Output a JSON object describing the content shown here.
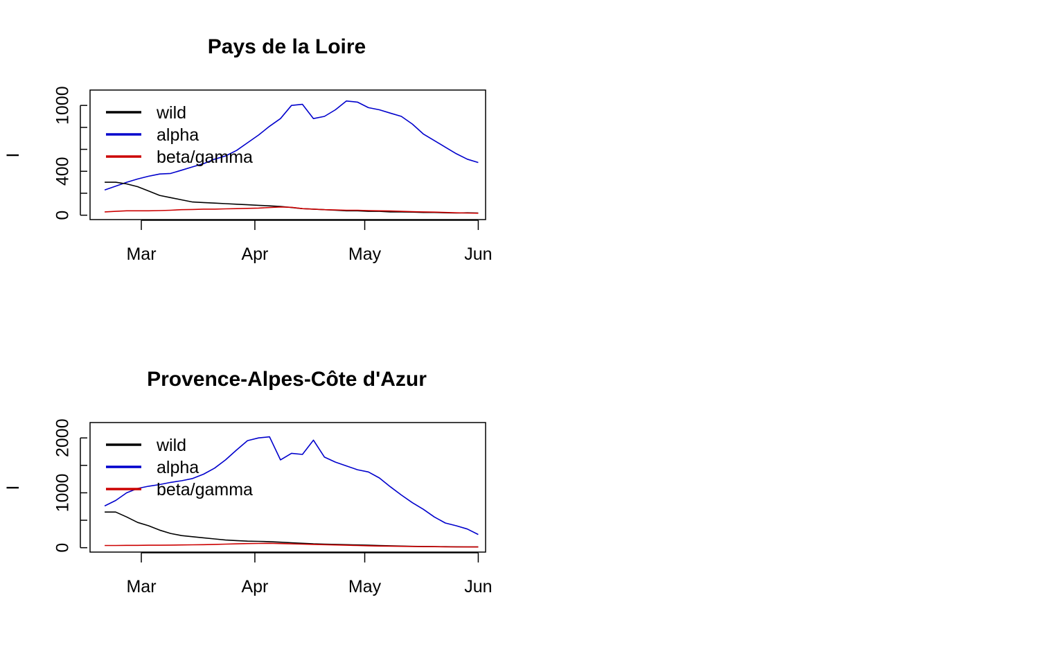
{
  "chart_data": [
    {
      "type": "line",
      "title": "Pays de la Loire",
      "xlabel": "",
      "ylabel": "I",
      "x_days": [
        0,
        3,
        6,
        9,
        12,
        15,
        18,
        21,
        24,
        27,
        30,
        33,
        36,
        39,
        42,
        45,
        48,
        51,
        54,
        57,
        60,
        63,
        66,
        69,
        72,
        75,
        78,
        81,
        84,
        87,
        90,
        93,
        96,
        99,
        102
      ],
      "x_ticks": [
        {
          "label": "Mar",
          "day": 10
        },
        {
          "label": "Apr",
          "day": 41
        },
        {
          "label": "May",
          "day": 71
        },
        {
          "label": "Jun",
          "day": 102
        }
      ],
      "xlim": [
        -4,
        104
      ],
      "ylim": [
        -40,
        1140
      ],
      "y_ticks": [
        0,
        200,
        400,
        600,
        800,
        1000
      ],
      "y_tick_labels": [
        "0",
        "",
        "400",
        "",
        "",
        "1000"
      ],
      "legend": {
        "position": "top-left",
        "entries": [
          "wild",
          "alpha",
          "beta/gamma"
        ]
      },
      "series": [
        {
          "name": "alpha",
          "color": "#0000cc",
          "values": [
            230,
            265,
            300,
            330,
            355,
            375,
            380,
            410,
            440,
            470,
            510,
            540,
            590,
            660,
            730,
            810,
            880,
            1000,
            1010,
            880,
            900,
            960,
            1040,
            1030,
            980,
            960,
            930,
            900,
            830,
            740,
            680,
            620,
            560,
            510,
            480
          ]
        },
        {
          "name": "wild",
          "color": "#000000",
          "values": [
            300,
            300,
            285,
            260,
            220,
            180,
            160,
            140,
            120,
            115,
            110,
            105,
            100,
            95,
            90,
            85,
            80,
            70,
            60,
            55,
            50,
            45,
            40,
            40,
            35,
            35,
            30,
            30,
            28,
            25,
            25,
            22,
            20,
            22,
            20
          ]
        },
        {
          "name": "beta/gamma",
          "color": "#cc0000",
          "values": [
            30,
            35,
            40,
            40,
            40,
            42,
            45,
            50,
            52,
            55,
            55,
            58,
            60,
            62,
            65,
            70,
            75,
            72,
            60,
            55,
            50,
            48,
            45,
            45,
            42,
            40,
            38,
            35,
            32,
            30,
            28,
            25,
            22,
            20,
            18
          ]
        }
      ]
    },
    {
      "type": "line",
      "title": "Provence-Alpes-Côte d'Azur",
      "xlabel": "",
      "ylabel": "I",
      "x_days": [
        0,
        3,
        6,
        9,
        12,
        15,
        18,
        21,
        24,
        27,
        30,
        33,
        36,
        39,
        42,
        45,
        48,
        51,
        54,
        57,
        60,
        63,
        66,
        69,
        72,
        75,
        78,
        81,
        84,
        87,
        90,
        93,
        96,
        99,
        102
      ],
      "x_ticks": [
        {
          "label": "Mar",
          "day": 10
        },
        {
          "label": "Apr",
          "day": 41
        },
        {
          "label": "May",
          "day": 71
        },
        {
          "label": "Jun",
          "day": 102
        }
      ],
      "xlim": [
        -4,
        104
      ],
      "ylim": [
        -80,
        2280
      ],
      "y_ticks": [
        0,
        500,
        1000,
        1500,
        2000
      ],
      "y_tick_labels": [
        "0",
        "",
        "1000",
        "",
        "2000"
      ],
      "legend": {
        "position": "top-left",
        "entries": [
          "wild",
          "alpha",
          "beta/gamma"
        ]
      },
      "series": [
        {
          "name": "alpha",
          "color": "#0000cc",
          "values": [
            760,
            860,
            1000,
            1080,
            1120,
            1150,
            1190,
            1220,
            1260,
            1340,
            1450,
            1600,
            1780,
            1950,
            2000,
            2020,
            1600,
            1720,
            1700,
            1960,
            1650,
            1560,
            1490,
            1420,
            1380,
            1270,
            1110,
            960,
            820,
            700,
            560,
            450,
            400,
            340,
            240
          ]
        },
        {
          "name": "wild",
          "color": "#000000",
          "values": [
            650,
            650,
            560,
            460,
            400,
            320,
            260,
            220,
            200,
            180,
            160,
            140,
            130,
            120,
            115,
            110,
            100,
            90,
            80,
            70,
            65,
            60,
            55,
            50,
            45,
            40,
            35,
            30,
            25,
            22,
            20,
            18,
            16,
            15,
            14
          ]
        },
        {
          "name": "beta/gamma",
          "color": "#cc0000",
          "values": [
            40,
            40,
            42,
            42,
            45,
            45,
            48,
            50,
            52,
            55,
            60,
            65,
            70,
            75,
            78,
            80,
            75,
            70,
            65,
            60,
            55,
            50,
            45,
            40,
            35,
            30,
            28,
            25,
            22,
            20,
            18,
            16,
            15,
            14,
            13
          ]
        }
      ]
    }
  ]
}
